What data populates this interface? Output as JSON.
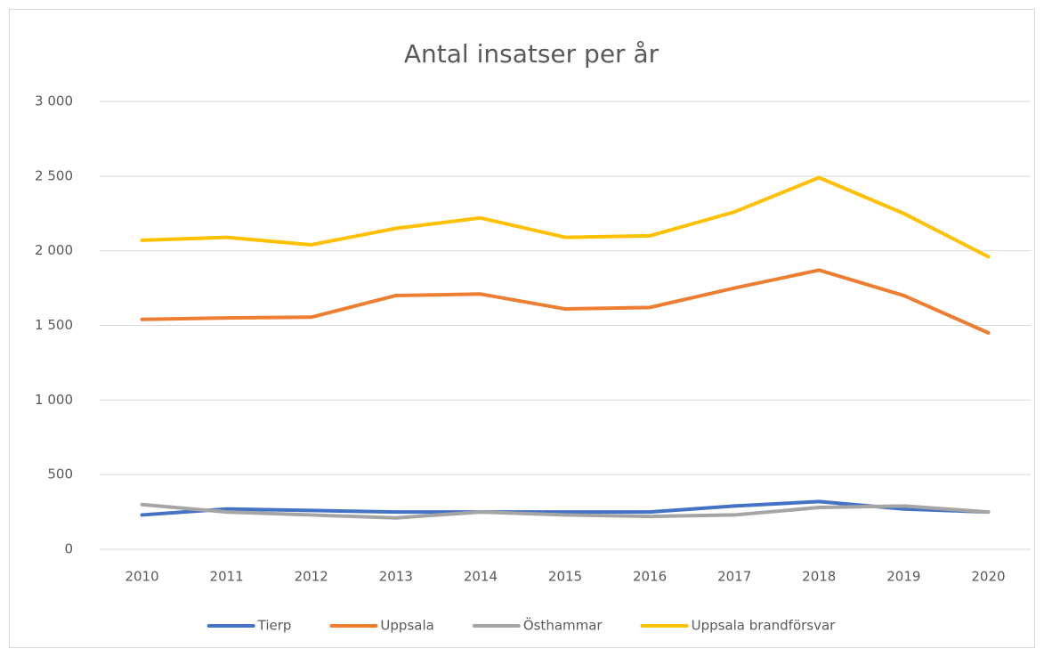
{
  "chart_data": {
    "type": "line",
    "title": "Antal insatser per år",
    "categories": [
      "2010",
      "2011",
      "2012",
      "2013",
      "2014",
      "2015",
      "2016",
      "2017",
      "2018",
      "2019",
      "2020"
    ],
    "series": [
      {
        "name": "Tierp",
        "color": "#4472c4",
        "values": [
          230,
          270,
          260,
          250,
          250,
          250,
          250,
          290,
          320,
          270,
          250
        ]
      },
      {
        "name": "Uppsala",
        "color": "#ed7d31",
        "values": [
          1540,
          1550,
          1555,
          1700,
          1710,
          1610,
          1620,
          1750,
          1870,
          1700,
          1450
        ]
      },
      {
        "name": "Östhammar",
        "color": "#a5a5a5",
        "values": [
          300,
          250,
          230,
          210,
          250,
          230,
          220,
          230,
          280,
          290,
          250
        ]
      },
      {
        "name": "Uppsala brandförsvar",
        "color": "#ffc000",
        "values": [
          2070,
          2090,
          2040,
          2150,
          2220,
          2090,
          2100,
          2260,
          2490,
          2250,
          1960
        ]
      }
    ],
    "ylim": [
      0,
      3000
    ],
    "yticks": [
      0,
      500,
      {
        "value": 1000,
        "label": "1 000"
      },
      {
        "value": 1500,
        "label": "1 500"
      },
      {
        "value": 2000,
        "label": "2 000"
      },
      {
        "value": 2500,
        "label": "2 500"
      },
      {
        "value": 3000,
        "label": "3 000"
      }
    ],
    "grid": true,
    "legend": "bottom"
  }
}
